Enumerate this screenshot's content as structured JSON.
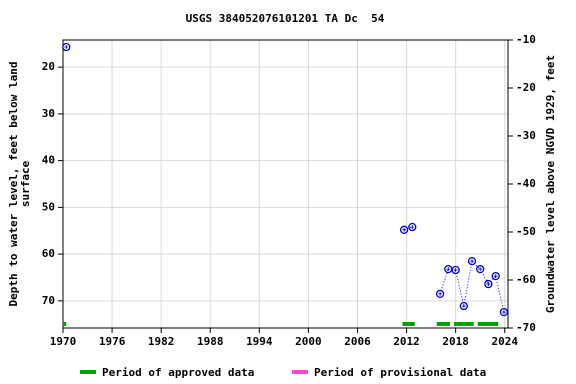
{
  "chart_data": {
    "type": "scatter",
    "title": "USGS 384052076101201 TA Dc  54",
    "y_label": [
      "Depth to water level, feet below land",
      "surface"
    ],
    "y2_label": "Groundwater level above NGVD 1929, feet",
    "xlim": [
      1970,
      2024.4
    ],
    "xticks": [
      1970,
      1976,
      1982,
      1988,
      1994,
      2000,
      2006,
      2012,
      2018,
      2024
    ],
    "ylim": [
      14.2,
      75.8
    ],
    "y_inverted": true,
    "yticks": [
      20,
      30,
      40,
      50,
      60,
      70
    ],
    "y2lim": [
      -70,
      -10
    ],
    "y2ticks": [
      -10,
      -20,
      -30,
      -40,
      -50,
      -60,
      -70
    ],
    "grid": true,
    "series": [
      {
        "name": "Water level",
        "color": "#0000cc",
        "x": [
          1970.4,
          2011.7,
          2012.7,
          2016.1,
          2017.1,
          2018.0,
          2019.0,
          2020.0,
          2021.0,
          2022.0,
          2022.9,
          2023.9
        ],
        "values": [
          15.7,
          54.8,
          54.2,
          68.5,
          63.2,
          63.4,
          71.1,
          61.5,
          63.2,
          66.4,
          64.7,
          72.4
        ]
      }
    ],
    "periods": [
      [
        1970,
        1970.4
      ],
      [
        2011.5,
        2013
      ],
      [
        2015.7,
        2017.3
      ],
      [
        2017.8,
        2020.2
      ],
      [
        2020.7,
        2023.2
      ]
    ],
    "legend": [
      {
        "name": "Period of approved data",
        "color": "#00a000"
      },
      {
        "name": "Period of provisional data",
        "color": "#ff44dd"
      }
    ]
  }
}
